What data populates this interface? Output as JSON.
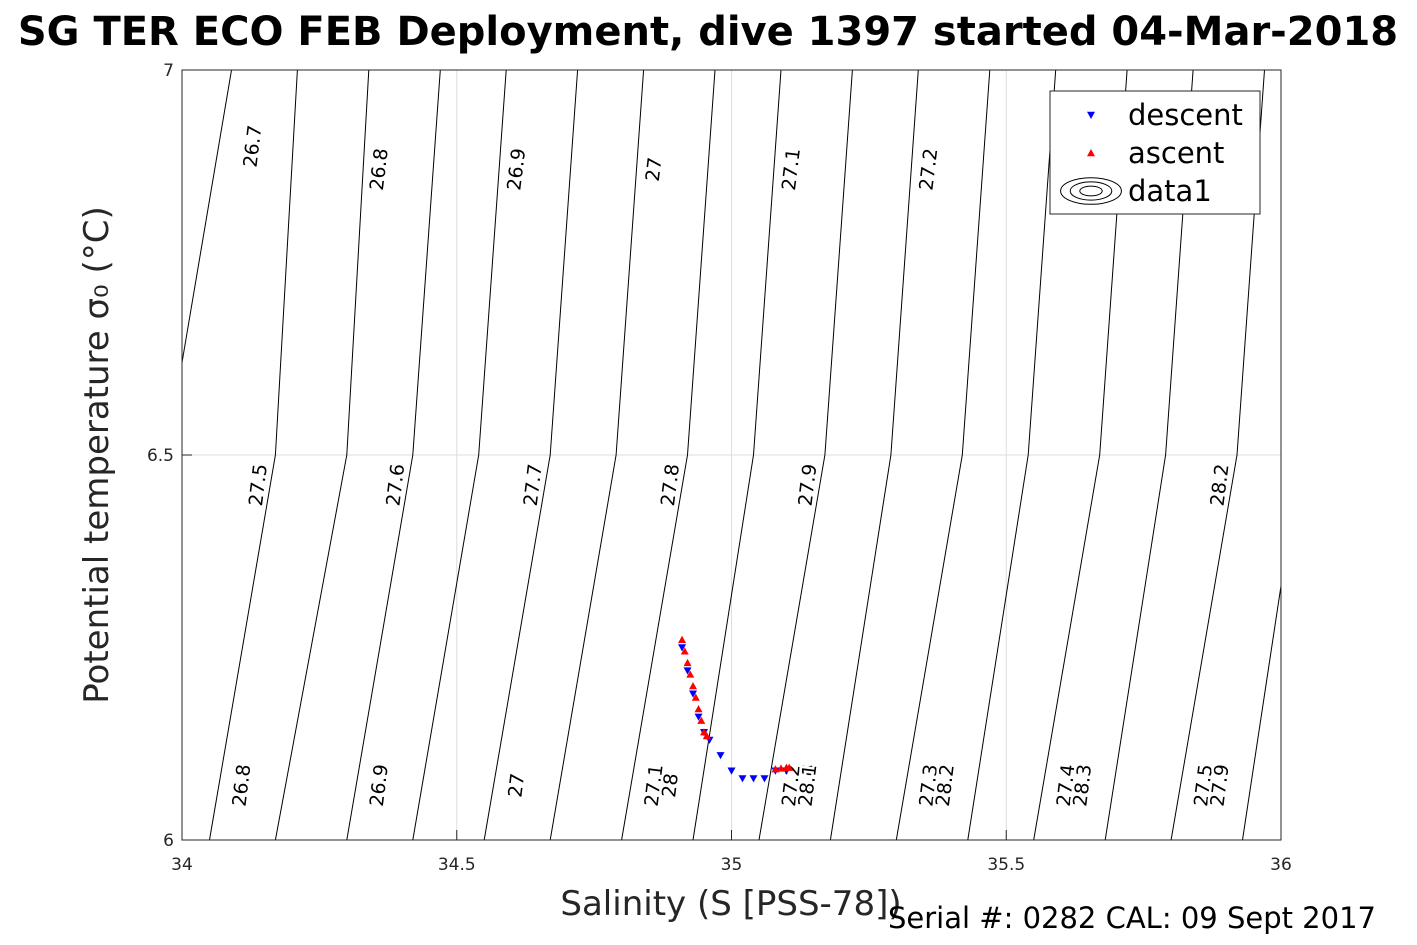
{
  "title": "SG TER ECO FEB Deployment, dive 1397 started 04-Mar-2018",
  "footer": "Serial #: 0282  CAL: 09 Sept 2017",
  "colors": {
    "descent": "#0000ff",
    "ascent": "#ff0000",
    "contour": "#000000",
    "grid": "#dddddd"
  },
  "chart_data": {
    "type": "scatter",
    "xlabel": "Salinity (S [PSS-78])",
    "ylabel": "Potential temperature σ₀ (°C)",
    "xlim": [
      34,
      36
    ],
    "ylim": [
      6,
      7
    ],
    "xticks": [
      "34",
      "34.5",
      "35",
      "35.5",
      "36"
    ],
    "yticks": [
      "6",
      "6.5",
      "7"
    ],
    "grid": true,
    "legend": {
      "placement": "top-right",
      "entries": [
        {
          "name": "descent",
          "marker": "triangle-down",
          "color": "#0000ff"
        },
        {
          "name": "ascent",
          "marker": "triangle-up",
          "color": "#ff0000"
        },
        {
          "name": "data1",
          "marker": "contour"
        }
      ]
    },
    "contours": {
      "levels": [
        26.7,
        26.8,
        26.9,
        27.0,
        27.1,
        27.2,
        27.3,
        27.4,
        27.5,
        27.6,
        27.7,
        27.8,
        27.9,
        28.0,
        28.1,
        28.2,
        28.3
      ],
      "points_by_level": {
        "26.7": [
          [
            34.0,
            6.62
          ],
          [
            34.09,
            7.0
          ]
        ],
        "26.8": [
          [
            34.05,
            6.0
          ],
          [
            34.17,
            6.5
          ],
          [
            34.21,
            7.0
          ]
        ],
        "26.9": [
          [
            34.17,
            6.0
          ],
          [
            34.3,
            6.5
          ],
          [
            34.34,
            7.0
          ]
        ],
        "27.0": [
          [
            34.3,
            6.0
          ],
          [
            34.42,
            6.5
          ],
          [
            34.47,
            7.0
          ]
        ],
        "27.1": [
          [
            34.42,
            6.0
          ],
          [
            34.54,
            6.5
          ],
          [
            34.59,
            7.0
          ]
        ],
        "27.2": [
          [
            34.55,
            6.0
          ],
          [
            34.67,
            6.5
          ],
          [
            34.72,
            7.0
          ]
        ],
        "27.3": [
          [
            34.67,
            6.0
          ],
          [
            34.79,
            6.5
          ],
          [
            34.84,
            7.0
          ]
        ],
        "27.4": [
          [
            34.8,
            6.0
          ],
          [
            34.92,
            6.5
          ],
          [
            34.97,
            7.0
          ]
        ],
        "27.5": [
          [
            34.93,
            6.0
          ],
          [
            35.04,
            6.5
          ],
          [
            35.09,
            7.0
          ]
        ],
        "27.6": [
          [
            35.05,
            6.0
          ],
          [
            35.17,
            6.5
          ],
          [
            35.22,
            7.0
          ]
        ],
        "27.7": [
          [
            35.18,
            6.0
          ],
          [
            35.29,
            6.5
          ],
          [
            35.34,
            7.0
          ]
        ],
        "27.8": [
          [
            35.3,
            6.0
          ],
          [
            35.42,
            6.5
          ],
          [
            35.47,
            7.0
          ]
        ],
        "27.9": [
          [
            35.43,
            6.0
          ],
          [
            35.54,
            6.5
          ],
          [
            35.59,
            7.0
          ]
        ],
        "28.0": [
          [
            35.55,
            6.0
          ],
          [
            35.67,
            6.5
          ],
          [
            35.72,
            7.0
          ]
        ],
        "28.1": [
          [
            35.68,
            6.0
          ],
          [
            35.79,
            6.5
          ],
          [
            35.84,
            7.0
          ]
        ],
        "28.2": [
          [
            35.8,
            6.0
          ],
          [
            35.92,
            6.5
          ],
          [
            35.97,
            7.0
          ]
        ],
        "28.3": [
          [
            35.93,
            6.0
          ],
          [
            36.0,
            6.33
          ]
        ]
      },
      "labels": [
        {
          "text": "26.7",
          "x": 34.14,
          "y": 6.9
        },
        {
          "text": "26.8",
          "x": 34.37,
          "y": 6.87
        },
        {
          "text": "26.9",
          "x": 34.62,
          "y": 6.87
        },
        {
          "text": "27",
          "x": 34.87,
          "y": 6.87
        },
        {
          "text": "27.1",
          "x": 35.12,
          "y": 6.87
        },
        {
          "text": "27.2",
          "x": 35.37,
          "y": 6.87
        },
        {
          "text": "27.3",
          "x": 35.62,
          "y": 6.87
        },
        {
          "text": "27.4",
          "x": 35.87,
          "y": 6.87
        },
        {
          "text": "27.5",
          "x": 34.15,
          "y": 6.46
        },
        {
          "text": "27.6",
          "x": 34.4,
          "y": 6.46
        },
        {
          "text": "27.7",
          "x": 34.65,
          "y": 6.46
        },
        {
          "text": "27.8",
          "x": 34.9,
          "y": 6.46
        },
        {
          "text": "27.9",
          "x": 35.15,
          "y": 6.46
        },
        {
          "text": "28.2",
          "x": 35.9,
          "y": 6.46
        },
        {
          "text": "26.8",
          "x": 34.12,
          "y": 6.07
        },
        {
          "text": "26.9",
          "x": 34.37,
          "y": 6.07
        },
        {
          "text": "27",
          "x": 34.62,
          "y": 6.07
        },
        {
          "text": "27.1",
          "x": 34.87,
          "y": 6.07
        },
        {
          "text": "27.2",
          "x": 35.12,
          "y": 6.07
        },
        {
          "text": "27.3",
          "x": 35.37,
          "y": 6.07
        },
        {
          "text": "27.4",
          "x": 35.62,
          "y": 6.07
        },
        {
          "text": "27.5",
          "x": 35.87,
          "y": 6.07
        },
        {
          "text": "27.6",
          "x": 35.15,
          "y": 6.07
        },
        {
          "text": "27.7",
          "x": 35.4,
          "y": 6.07
        },
        {
          "text": "27.8",
          "x": 35.65,
          "y": 6.07
        },
        {
          "text": "27.9",
          "x": 35.9,
          "y": 6.07
        },
        {
          "text": "28",
          "x": 34.9,
          "y": 6.07
        },
        {
          "text": "28.1",
          "x": 35.15,
          "y": 6.07
        },
        {
          "text": "28.2",
          "x": 35.4,
          "y": 6.07
        },
        {
          "text": "28.3",
          "x": 35.65,
          "y": 6.07
        }
      ]
    },
    "series": [
      {
        "name": "descent",
        "marker": "triangle-down",
        "x": [
          34.91,
          34.92,
          34.93,
          34.94,
          34.95,
          34.96,
          34.98,
          35.0,
          35.02,
          35.04,
          35.06,
          35.08,
          35.1
        ],
        "y": [
          6.25,
          6.22,
          6.19,
          6.16,
          6.14,
          6.13,
          6.11,
          6.09,
          6.08,
          6.08,
          6.08,
          6.09,
          6.09
        ]
      },
      {
        "name": "ascent",
        "marker": "triangle-up",
        "x": [
          34.91,
          34.915,
          34.92,
          34.925,
          34.93,
          34.935,
          34.94,
          34.945,
          34.95,
          34.955,
          35.08,
          35.09,
          35.1,
          35.105
        ],
        "y": [
          6.26,
          6.245,
          6.23,
          6.215,
          6.2,
          6.185,
          6.17,
          6.155,
          6.14,
          6.135,
          6.092,
          6.093,
          6.094,
          6.094
        ]
      }
    ]
  }
}
